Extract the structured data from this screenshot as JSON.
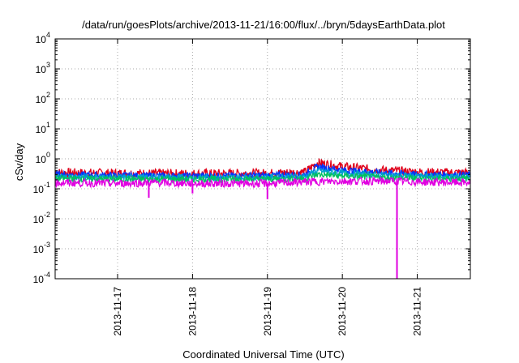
{
  "chart_data": {
    "type": "line",
    "title": "/data/run/goesPlots/archive/2013-11-21/16:00/flux/../bryn/5daysEarthData.plot",
    "xlabel": "Coordinated Universal Time (UTC)",
    "ylabel": "cSv/day",
    "yscale": "log",
    "ylim": [
      0.0001,
      10000
    ],
    "y_ticks": [
      {
        "base": "10",
        "exp": "-4"
      },
      {
        "base": "10",
        "exp": "-3"
      },
      {
        "base": "10",
        "exp": "-2"
      },
      {
        "base": "10",
        "exp": "-1"
      },
      {
        "base": "10",
        "exp": "0"
      },
      {
        "base": "10",
        "exp": "1"
      },
      {
        "base": "10",
        "exp": "2"
      },
      {
        "base": "10",
        "exp": "3"
      },
      {
        "base": "10",
        "exp": "4"
      }
    ],
    "xlim": [
      "2013-11-16T04:00",
      "2013-11-21T17:00"
    ],
    "x_ticks": [
      "2013-11-17",
      "2013-11-18",
      "2013-11-19",
      "2013-11-20",
      "2013-11-21"
    ],
    "grid": true,
    "series": [
      {
        "color": "#e0001a",
        "x": [
          "2013-11-16T04:00",
          "2013-11-17T00:00",
          "2013-11-18T00:00",
          "2013-11-19T00:00",
          "2013-11-19T12:00",
          "2013-11-19T16:00",
          "2013-11-20T00:00",
          "2013-11-20T12:00",
          "2013-11-21T00:00",
          "2013-11-21T17:00"
        ],
        "values": [
          0.35,
          0.33,
          0.32,
          0.33,
          0.36,
          0.75,
          0.55,
          0.42,
          0.36,
          0.34
        ]
      },
      {
        "color": "#0033ff",
        "x": [
          "2013-11-16T04:00",
          "2013-11-17T00:00",
          "2013-11-18T00:00",
          "2013-11-19T00:00",
          "2013-11-19T12:00",
          "2013-11-19T16:00",
          "2013-11-20T00:00",
          "2013-11-20T12:00",
          "2013-11-21T00:00",
          "2013-11-21T17:00"
        ],
        "values": [
          0.3,
          0.28,
          0.27,
          0.28,
          0.3,
          0.55,
          0.42,
          0.35,
          0.3,
          0.29
        ]
      },
      {
        "color": "#00a0d0",
        "x": [
          "2013-11-16T04:00",
          "2013-11-17T00:00",
          "2013-11-18T00:00",
          "2013-11-19T00:00",
          "2013-11-19T12:00",
          "2013-11-19T16:00",
          "2013-11-20T00:00",
          "2013-11-20T12:00",
          "2013-11-21T00:00",
          "2013-11-21T17:00"
        ],
        "values": [
          0.25,
          0.24,
          0.24,
          0.24,
          0.26,
          0.4,
          0.33,
          0.29,
          0.26,
          0.25
        ]
      },
      {
        "color": "#00c060",
        "x": [
          "2013-11-16T04:00",
          "2013-11-17T00:00",
          "2013-11-18T00:00",
          "2013-11-19T00:00",
          "2013-11-19T12:00",
          "2013-11-19T16:00",
          "2013-11-20T00:00",
          "2013-11-20T12:00",
          "2013-11-21T00:00",
          "2013-11-21T17:00"
        ],
        "values": [
          0.22,
          0.21,
          0.21,
          0.21,
          0.22,
          0.3,
          0.27,
          0.24,
          0.22,
          0.22
        ]
      },
      {
        "color": "#e000e0",
        "x": [
          "2013-11-16T04:00",
          "2013-11-17T00:00",
          "2013-11-17T12:00",
          "2013-11-18T00:00",
          "2013-11-19T00:00",
          "2013-11-19T12:00",
          "2013-11-20T00:00",
          "2013-11-20T16:00",
          "2013-11-21T00:00",
          "2013-11-21T17:00"
        ],
        "values": [
          0.16,
          0.15,
          0.16,
          0.15,
          0.15,
          0.17,
          0.18,
          0.18,
          0.17,
          0.16
        ]
      }
    ],
    "annotations": [
      {
        "type": "dip",
        "series_color": "#e000e0",
        "x": "2013-11-17T10:00",
        "y": 0.05
      },
      {
        "type": "dip",
        "series_color": "#e000e0",
        "x": "2013-11-18T00:00",
        "y": 0.07
      },
      {
        "type": "dip",
        "series_color": "#e000e0",
        "x": "2013-11-19T00:00",
        "y": 0.045
      },
      {
        "type": "dip",
        "series_color": "#e000e0",
        "x": "2013-11-20T17:30",
        "y": 0.0001
      }
    ]
  }
}
